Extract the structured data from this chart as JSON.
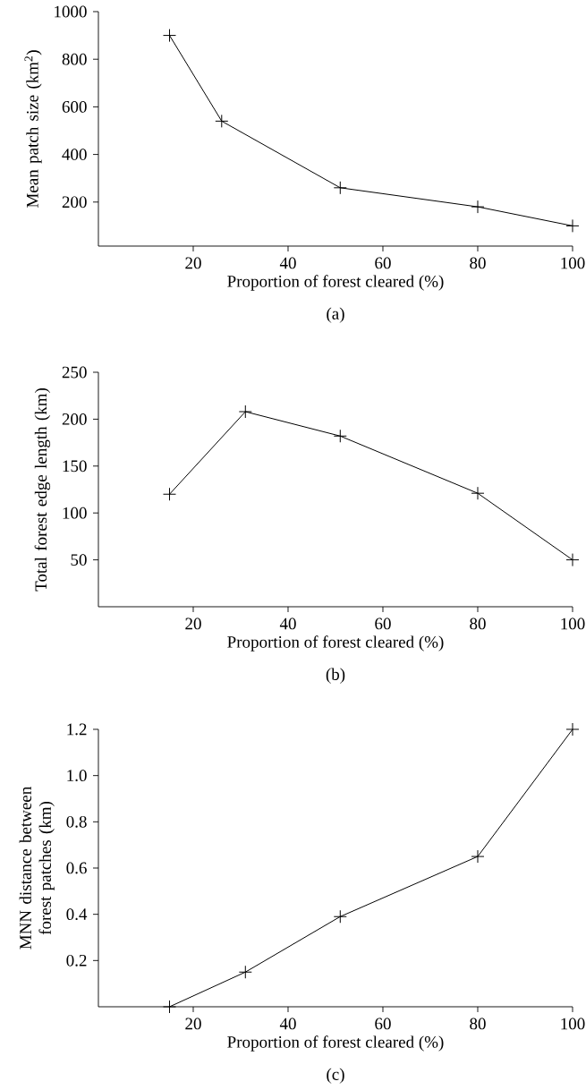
{
  "chart_data": [
    {
      "type": "line",
      "xlabel": "Proportion of forest cleared (%)",
      "ylabel": "Mean patch size (km$^{2}$)",
      "annotations": [
        "(a)"
      ],
      "x": [
        15,
        26,
        51,
        80,
        100
      ],
      "values": [
        900,
        540,
        260,
        180,
        100
      ],
      "color": "#000000",
      "marker": "cross",
      "line_style": "solid",
      "xlim": [
        0,
        100
      ],
      "ylim": [
        15,
        1000
      ],
      "xticks": [
        20,
        40,
        60,
        80,
        100
      ],
      "yticks": [
        200,
        400,
        600,
        800,
        1000
      ]
    },
    {
      "type": "line",
      "xlabel": "Proportion of forest cleared (%)",
      "ylabel": "Total forest edge length (km)",
      "annotations": [
        "(b)"
      ],
      "x": [
        15,
        31,
        51,
        80,
        100
      ],
      "values": [
        120,
        208,
        182,
        121,
        50
      ],
      "color": "#000000",
      "marker": "cross",
      "line_style": "solid",
      "xlim": [
        0,
        100
      ],
      "ylim": [
        0,
        250
      ],
      "xticks": [
        20,
        40,
        60,
        80,
        100
      ],
      "yticks": [
        50,
        100,
        150,
        200,
        250
      ]
    },
    {
      "type": "line",
      "xlabel": "Proportion of forest cleared (%)",
      "ylabel": "MNN distance between forest patches (km)",
      "annotations": [
        "(c)"
      ],
      "x": [
        15,
        31,
        51,
        80,
        100
      ],
      "values": [
        0,
        0.15,
        0.39,
        0.65,
        1.2
      ],
      "color": "#000000",
      "marker": "cross",
      "line_style": "solid",
      "xlim": [
        0,
        100
      ],
      "ylim": [
        0,
        1.2
      ],
      "xticks": [
        20,
        40,
        60,
        80,
        100
      ],
      "yticks": [
        {
          "value": 0.2,
          "label": "0.2"
        },
        {
          "value": 0.4,
          "label": "0.4"
        },
        {
          "value": 0.6,
          "label": "0.6"
        },
        {
          "value": 0.8,
          "label": "0.8"
        },
        {
          "value": 1.0,
          "label": "1.0"
        },
        {
          "value": 1.2,
          "label": "1.2"
        }
      ]
    }
  ]
}
